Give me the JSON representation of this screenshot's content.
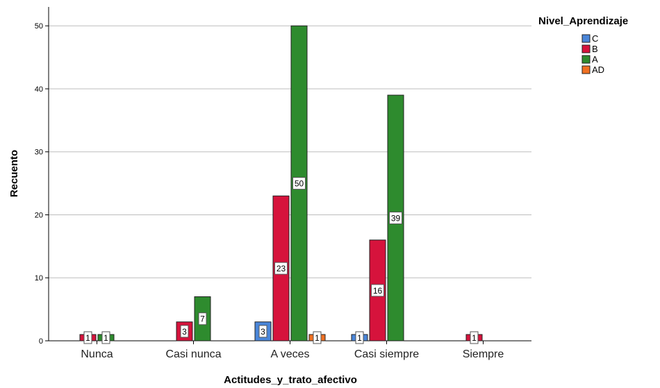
{
  "chart_data": {
    "type": "bar",
    "xlabel": "Actitudes_y_trato_afectivo",
    "ylabel": "Recuento",
    "ylim": [
      0,
      53
    ],
    "yticks": [
      0,
      10,
      20,
      30,
      40,
      50
    ],
    "grid": true,
    "legend_title": "Nivel_Aprendizaje",
    "legend_position": "top-right",
    "categories": [
      "Nunca",
      "Casi nunca",
      "A veces",
      "Casi siempre",
      "Siempre"
    ],
    "series": [
      {
        "name": "C",
        "color": "#4a86d9",
        "values": [
          0,
          0,
          3,
          1,
          0
        ]
      },
      {
        "name": "B",
        "color": "#d6133c",
        "values": [
          1,
          3,
          23,
          16,
          1
        ]
      },
      {
        "name": "A",
        "color": "#2e8b2e",
        "values": [
          1,
          7,
          50,
          39,
          0
        ]
      },
      {
        "name": "AD",
        "color": "#f07022",
        "values": [
          0,
          0,
          1,
          0,
          0
        ]
      }
    ]
  }
}
